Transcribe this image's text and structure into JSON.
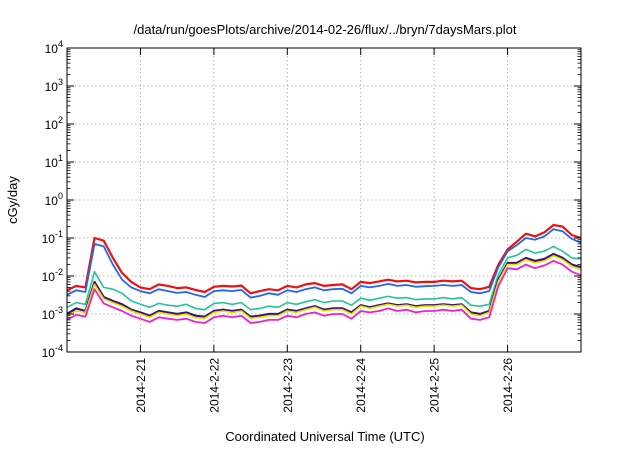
{
  "chart_data": {
    "type": "line",
    "title": "/data/run/goesPlots/archive/2014-02-26/flux/../bryn/7daysMars.plot",
    "xlabel": "Coordinated Universal Time (UTC)",
    "ylabel": "cGy/day",
    "y_scale": "log",
    "ylim": [
      0.0001,
      10000
    ],
    "xlim": [
      "2014-02-20 00:00",
      "2014-02-27 00:00"
    ],
    "y_ticks": [
      {
        "value": 0.0001,
        "base": "10",
        "exp": "-4"
      },
      {
        "value": 0.001,
        "base": "10",
        "exp": "-3"
      },
      {
        "value": 0.01,
        "base": "10",
        "exp": "-2"
      },
      {
        "value": 0.1,
        "base": "10",
        "exp": "-1"
      },
      {
        "value": 1,
        "base": "10",
        "exp": "0"
      },
      {
        "value": 10,
        "base": "10",
        "exp": "1"
      },
      {
        "value": 100,
        "base": "10",
        "exp": "2"
      },
      {
        "value": 1000,
        "base": "10",
        "exp": "3"
      },
      {
        "value": 10000,
        "base": "10",
        "exp": "4"
      }
    ],
    "x_ticks": [
      "2014-2-21",
      "2014-2-22",
      "2014-2-23",
      "2014-2-24",
      "2014-2-25",
      "2014-2-26"
    ],
    "grid": true,
    "x": [
      "2014-02-20 00:00",
      "2014-02-20 03:00",
      "2014-02-20 06:00",
      "2014-02-20 09:00",
      "2014-02-20 12:00",
      "2014-02-20 15:00",
      "2014-02-20 18:00",
      "2014-02-20 21:00",
      "2014-02-21 00:00",
      "2014-02-21 03:00",
      "2014-02-21 06:00",
      "2014-02-21 09:00",
      "2014-02-21 12:00",
      "2014-02-21 15:00",
      "2014-02-21 18:00",
      "2014-02-21 21:00",
      "2014-02-22 00:00",
      "2014-02-22 03:00",
      "2014-02-22 06:00",
      "2014-02-22 09:00",
      "2014-02-22 12:00",
      "2014-02-22 15:00",
      "2014-02-22 18:00",
      "2014-02-22 21:00",
      "2014-02-23 00:00",
      "2014-02-23 03:00",
      "2014-02-23 06:00",
      "2014-02-23 09:00",
      "2014-02-23 12:00",
      "2014-02-23 15:00",
      "2014-02-23 18:00",
      "2014-02-23 21:00",
      "2014-02-24 00:00",
      "2014-02-24 03:00",
      "2014-02-24 06:00",
      "2014-02-24 09:00",
      "2014-02-24 12:00",
      "2014-02-24 15:00",
      "2014-02-24 18:00",
      "2014-02-24 21:00",
      "2014-02-25 00:00",
      "2014-02-25 03:00",
      "2014-02-25 06:00",
      "2014-02-25 09:00",
      "2014-02-25 12:00",
      "2014-02-25 15:00",
      "2014-02-25 18:00",
      "2014-02-25 21:00",
      "2014-02-26 00:00",
      "2014-02-26 03:00",
      "2014-02-26 06:00",
      "2014-02-26 09:00",
      "2014-02-26 12:00",
      "2014-02-26 15:00",
      "2014-02-26 18:00",
      "2014-02-26 21:00",
      "2014-02-27 00:00"
    ],
    "series": [
      {
        "color": "#ee1111",
        "width": 2.2,
        "values": [
          0.0042,
          0.0055,
          0.005,
          0.1,
          0.085,
          0.03,
          0.012,
          0.007,
          0.005,
          0.0045,
          0.006,
          0.0055,
          0.0048,
          0.005,
          0.0043,
          0.0038,
          0.0052,
          0.0055,
          0.0053,
          0.0056,
          0.0035,
          0.004,
          0.0045,
          0.0042,
          0.0055,
          0.005,
          0.006,
          0.0065,
          0.0055,
          0.0058,
          0.006,
          0.0045,
          0.007,
          0.0065,
          0.0072,
          0.008,
          0.0072,
          0.0075,
          0.0068,
          0.007,
          0.007,
          0.0075,
          0.0072,
          0.0075,
          0.0048,
          0.0045,
          0.0052,
          0.02,
          0.05,
          0.08,
          0.13,
          0.11,
          0.14,
          0.22,
          0.2,
          0.12,
          0.1
        ]
      },
      {
        "color": "#2266ee",
        "width": 1.8,
        "values": [
          0.0032,
          0.0042,
          0.0038,
          0.07,
          0.06,
          0.02,
          0.008,
          0.005,
          0.004,
          0.0035,
          0.0045,
          0.004,
          0.0036,
          0.0038,
          0.0032,
          0.0028,
          0.004,
          0.0042,
          0.004,
          0.0043,
          0.0027,
          0.003,
          0.0035,
          0.0032,
          0.0042,
          0.0038,
          0.0045,
          0.005,
          0.0042,
          0.0045,
          0.0046,
          0.0035,
          0.0055,
          0.005,
          0.0055,
          0.0062,
          0.0055,
          0.0058,
          0.0052,
          0.0054,
          0.0055,
          0.0058,
          0.0055,
          0.0058,
          0.0038,
          0.0035,
          0.004,
          0.017,
          0.045,
          0.065,
          0.1,
          0.09,
          0.11,
          0.17,
          0.15,
          0.095,
          0.075
        ]
      },
      {
        "color": "#22c49a",
        "width": 1.6,
        "values": [
          0.0015,
          0.002,
          0.0018,
          0.013,
          0.005,
          0.0045,
          0.0035,
          0.0022,
          0.0018,
          0.0015,
          0.0019,
          0.0017,
          0.0016,
          0.0018,
          0.0014,
          0.0013,
          0.0019,
          0.002,
          0.0018,
          0.002,
          0.0013,
          0.0014,
          0.0016,
          0.0015,
          0.002,
          0.0018,
          0.0021,
          0.0024,
          0.002,
          0.0022,
          0.0022,
          0.0017,
          0.0026,
          0.0023,
          0.0026,
          0.0029,
          0.0026,
          0.0027,
          0.0024,
          0.0025,
          0.0025,
          0.0027,
          0.0025,
          0.0027,
          0.0017,
          0.0016,
          0.0018,
          0.011,
          0.03,
          0.035,
          0.05,
          0.04,
          0.045,
          0.06,
          0.045,
          0.03,
          0.028
        ]
      },
      {
        "color": "#3a1670",
        "width": 2.2,
        "values": [
          0.001,
          0.0014,
          0.0012,
          0.007,
          0.0028,
          0.0022,
          0.0018,
          0.0013,
          0.0011,
          0.0009,
          0.0012,
          0.0011,
          0.001,
          0.0011,
          0.0009,
          0.00085,
          0.0012,
          0.0013,
          0.0012,
          0.0013,
          0.00085,
          0.0009,
          0.001,
          0.001,
          0.0013,
          0.0012,
          0.0014,
          0.0016,
          0.0013,
          0.0014,
          0.0014,
          0.0011,
          0.0017,
          0.0015,
          0.0017,
          0.0019,
          0.0017,
          0.0018,
          0.0016,
          0.0017,
          0.0017,
          0.0018,
          0.0017,
          0.0018,
          0.0011,
          0.001,
          0.0012,
          0.008,
          0.022,
          0.022,
          0.03,
          0.025,
          0.028,
          0.038,
          0.03,
          0.02,
          0.017
        ]
      },
      {
        "color": "#e8e000",
        "width": 1.6,
        "values": [
          0.0009,
          0.0012,
          0.0011,
          0.006,
          0.0025,
          0.002,
          0.0016,
          0.0012,
          0.001,
          0.00082,
          0.0011,
          0.001,
          0.0009,
          0.001,
          0.0008,
          0.00077,
          0.0011,
          0.0012,
          0.0011,
          0.0012,
          0.00077,
          0.00082,
          0.0009,
          0.0009,
          0.0012,
          0.0011,
          0.0013,
          0.0015,
          0.0012,
          0.0013,
          0.0013,
          0.001,
          0.0016,
          0.0014,
          0.0016,
          0.0018,
          0.0016,
          0.0017,
          0.0015,
          0.0016,
          0.0016,
          0.0017,
          0.0016,
          0.0017,
          0.001,
          0.0009,
          0.0011,
          0.0072,
          0.02,
          0.02,
          0.027,
          0.022,
          0.025,
          0.034,
          0.027,
          0.018,
          0.0145
        ]
      },
      {
        "color": "#ee22cc",
        "width": 1.8,
        "values": [
          0.0007,
          0.00095,
          0.00085,
          0.0045,
          0.0019,
          0.0015,
          0.0012,
          0.0009,
          0.00075,
          0.00062,
          0.00082,
          0.00075,
          0.0007,
          0.00075,
          0.00062,
          0.00058,
          0.00082,
          0.0009,
          0.00082,
          0.0009,
          0.00058,
          0.00062,
          0.0007,
          0.0007,
          0.0009,
          0.00082,
          0.001,
          0.0011,
          0.0009,
          0.001,
          0.001,
          0.00075,
          0.0012,
          0.0011,
          0.0012,
          0.0014,
          0.0012,
          0.0013,
          0.0011,
          0.0012,
          0.0012,
          0.0013,
          0.0012,
          0.0013,
          0.00075,
          0.0007,
          0.00082,
          0.0055,
          0.016,
          0.015,
          0.02,
          0.016,
          0.019,
          0.025,
          0.02,
          0.013,
          0.0105
        ]
      }
    ]
  }
}
